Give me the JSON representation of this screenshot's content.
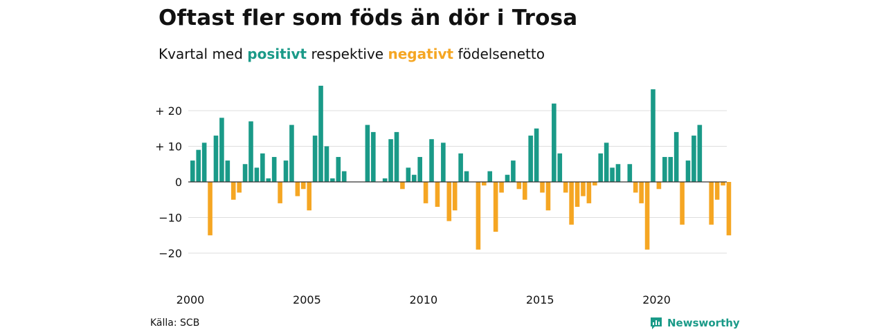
{
  "title": "Oftast fler som föds än dör i Trosa",
  "subtitle": {
    "prefix": "Kvartal med ",
    "positive_word": "positivt",
    "middle": " respektive ",
    "negative_word": "negativt",
    "suffix": " födelsenetto"
  },
  "source": "Källa: SCB",
  "brand": {
    "label": "Newsworthy",
    "icon": "newsworthy-logo-icon"
  },
  "colors": {
    "positive": "#1a9a88",
    "negative": "#f5a623",
    "grid": "#dddddd",
    "zero": "#333333"
  },
  "chart_data": {
    "type": "bar",
    "title": "Oftast fler som föds än dör i Trosa",
    "start": "2000 Q1",
    "x_ticks": [
      {
        "label": "2000",
        "year": 2000
      },
      {
        "label": "2005",
        "year": 2005
      },
      {
        "label": "2010",
        "year": 2010
      },
      {
        "label": "2015",
        "year": 2015
      },
      {
        "label": "2020",
        "year": 2020
      }
    ],
    "y_ticks": [
      {
        "value": 20,
        "label": "+ 20"
      },
      {
        "value": 10,
        "label": "+ 10"
      },
      {
        "value": 0,
        "label": "0"
      },
      {
        "value": -10,
        "label": "−10"
      },
      {
        "value": -20,
        "label": "−20"
      }
    ],
    "ylim": [
      -26,
      28
    ],
    "grid": true,
    "values": [
      6,
      9,
      11,
      -15,
      13,
      18,
      6,
      -5,
      -3,
      5,
      17,
      4,
      8,
      1,
      7,
      -6,
      6,
      16,
      -4,
      -2,
      -8,
      13,
      27,
      10,
      1,
      7,
      3,
      0,
      0,
      0,
      16,
      14,
      0,
      1,
      12,
      14,
      -2,
      4,
      2,
      7,
      -6,
      12,
      -7,
      11,
      -11,
      -8,
      8,
      3,
      0,
      -19,
      -1,
      3,
      -14,
      -3,
      2,
      6,
      -2,
      -5,
      13,
      15,
      -3,
      -8,
      22,
      8,
      -3,
      -12,
      -7,
      -4,
      -6,
      -1,
      8,
      11,
      4,
      5,
      0,
      5,
      -3,
      -6,
      -19,
      26,
      -2,
      7,
      7,
      14,
      -12,
      6,
      13,
      16,
      0,
      -12,
      -5,
      -1,
      -15
    ]
  }
}
